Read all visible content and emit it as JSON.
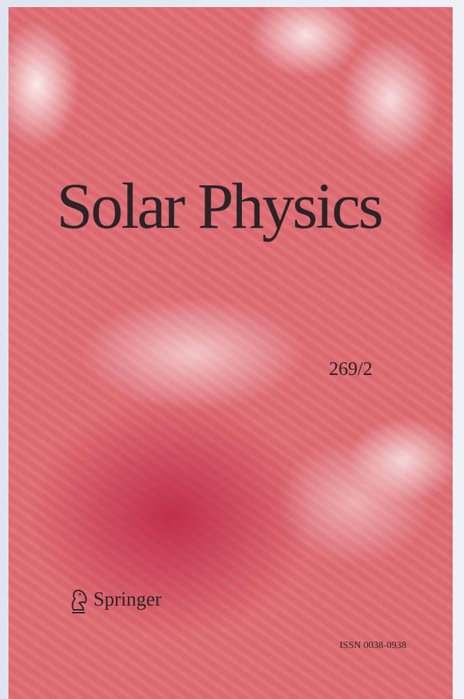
{
  "cover": {
    "title": "Solar Physics",
    "issue": "269/2",
    "publisher": "Springer",
    "issn": "ISSN 0038-0938"
  }
}
